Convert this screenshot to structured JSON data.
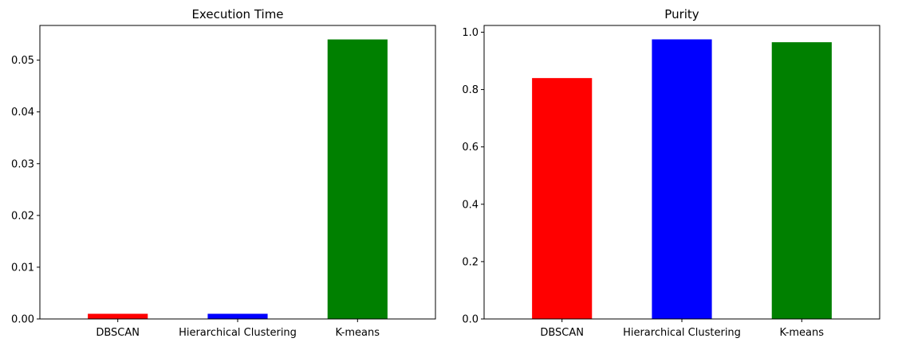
{
  "chart_data": [
    {
      "type": "bar",
      "title": "Execution Time",
      "xlabel": "",
      "ylabel": "",
      "categories": [
        "DBSCAN",
        "Hierarchical Clustering",
        "K-means"
      ],
      "values": [
        0.001,
        0.001,
        0.054
      ],
      "colors": [
        "#ff0000",
        "#0000ff",
        "#008000"
      ],
      "ylim": [
        0,
        0.0567
      ],
      "yticks": [
        0.0,
        0.01,
        0.02,
        0.03,
        0.04,
        0.05
      ],
      "ytick_labels": [
        "0.00",
        "0.01",
        "0.02",
        "0.03",
        "0.04",
        "0.05"
      ],
      "grid": false,
      "legend": "none"
    },
    {
      "type": "bar",
      "title": "Purity",
      "xlabel": "",
      "ylabel": "",
      "categories": [
        "DBSCAN",
        "Hierarchical Clustering",
        "K-means"
      ],
      "values": [
        0.84,
        0.975,
        0.965
      ],
      "colors": [
        "#ff0000",
        "#0000ff",
        "#008000"
      ],
      "ylim": [
        0,
        1.0235
      ],
      "yticks": [
        0.0,
        0.2,
        0.4,
        0.6,
        0.8,
        1.0
      ],
      "ytick_labels": [
        "0.0",
        "0.2",
        "0.4",
        "0.6",
        "0.8",
        "1.0"
      ],
      "grid": false,
      "legend": "none"
    }
  ]
}
